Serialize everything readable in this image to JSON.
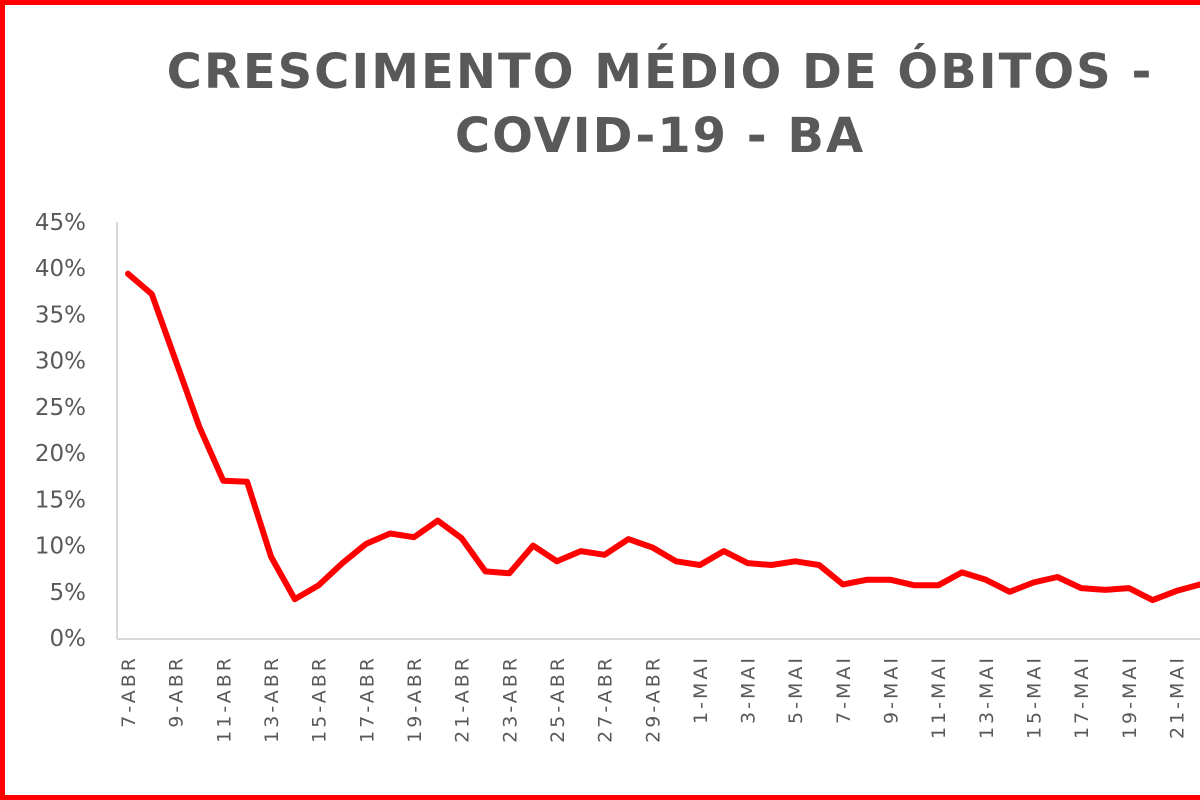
{
  "chart_data": {
    "type": "line",
    "title": "CRESCIMENTO MÉDIO DE ÓBITOS - COVID-19 - BA",
    "title_lines": [
      "CRESCIMENTO  MÉDIO  DE  ÓBITOS  -",
      "COVID-19  - BA"
    ],
    "xlabel": "",
    "ylabel": "",
    "ylim": [
      0,
      45
    ],
    "yticks": [
      "0%",
      "5%",
      "10%",
      "15%",
      "20%",
      "25%",
      "30%",
      "35%",
      "40%",
      "45%"
    ],
    "grid": false,
    "legend": "none",
    "line_color": "#ff0000",
    "xtick_labels": [
      "7-ABR",
      "9-ABR",
      "11-ABR",
      "13-ABR",
      "15-ABR",
      "17-ABR",
      "19-ABR",
      "21-ABR",
      "23-ABR",
      "25-ABR",
      "27-ABR",
      "29-ABR",
      "1-MAI",
      "3-MAI",
      "5-MAI",
      "7-MAI",
      "9-MAI",
      "11-MAI",
      "13-MAI",
      "15-MAI",
      "17-MAI",
      "19-MAI",
      "21-MAI"
    ],
    "categories": [
      "7-ABR",
      "8-ABR",
      "9-ABR",
      "10-ABR",
      "11-ABR",
      "12-ABR",
      "13-ABR",
      "14-ABR",
      "15-ABR",
      "16-ABR",
      "17-ABR",
      "18-ABR",
      "19-ABR",
      "20-ABR",
      "21-ABR",
      "22-ABR",
      "23-ABR",
      "24-ABR",
      "25-ABR",
      "26-ABR",
      "27-ABR",
      "28-ABR",
      "29-ABR",
      "30-ABR",
      "1-MAI",
      "2-MAI",
      "3-MAI",
      "4-MAI",
      "5-MAI",
      "6-MAI",
      "7-MAI",
      "8-MAI",
      "9-MAI",
      "10-MAI",
      "11-MAI",
      "12-MAI",
      "13-MAI",
      "14-MAI",
      "15-MAI",
      "16-MAI",
      "17-MAI",
      "18-MAI",
      "19-MAI",
      "20-MAI",
      "21-MAI",
      "22-MAI"
    ],
    "series": [
      {
        "name": "Crescimento médio de óbitos",
        "values": [
          39.4,
          37.2,
          30.0,
          22.8,
          17.0,
          16.9,
          8.8,
          4.2,
          5.7,
          8.1,
          10.2,
          11.3,
          10.9,
          12.7,
          10.8,
          7.2,
          7.0,
          10.0,
          8.3,
          9.4,
          9.0,
          10.7,
          9.8,
          8.3,
          7.9,
          9.4,
          8.1,
          7.9,
          8.3,
          7.9,
          5.8,
          6.3,
          6.3,
          5.7,
          5.7,
          7.1,
          6.3,
          5.0,
          6.0,
          6.6,
          5.4,
          5.2,
          5.4,
          4.1,
          5.1,
          5.8
        ]
      }
    ]
  }
}
